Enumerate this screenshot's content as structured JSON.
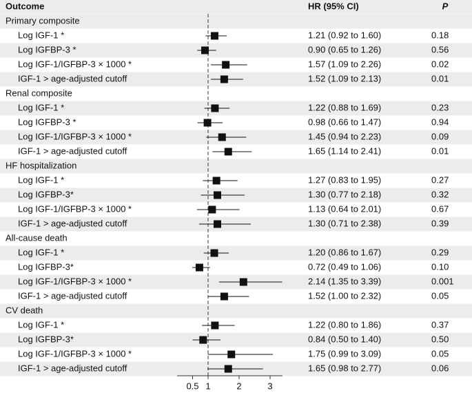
{
  "chart_data": {
    "type": "forest",
    "columns": {
      "outcome": "Outcome",
      "hr": "HR (95% CI)",
      "p": "P"
    },
    "xlim": [
      0,
      3.4
    ],
    "xticks": [
      0.5,
      1,
      2,
      3
    ],
    "reference": 1,
    "color": "#111111",
    "groups": [
      {
        "name": "Primary composite",
        "rows": [
          {
            "label": "Log IGF-1 *",
            "hr": 1.21,
            "lo": 0.92,
            "hi": 1.6,
            "ci_label": "1.21 (0.92 to 1.60)",
            "p": "0.18"
          },
          {
            "label": "Log IGFBP-3 *",
            "hr": 0.9,
            "lo": 0.65,
            "hi": 1.26,
            "ci_label": "0.90 (0.65 to 1.26)",
            "p": "0.56"
          },
          {
            "label": "Log IGF-1/IGFBP-3 × 1000 *",
            "hr": 1.57,
            "lo": 1.09,
            "hi": 2.26,
            "ci_label": "1.57 (1.09 to 2.26)",
            "p": "0.02"
          },
          {
            "label": "IGF-1 > age-adjusted cutoff",
            "hr": 1.52,
            "lo": 1.09,
            "hi": 2.13,
            "ci_label": "1.52 (1.09 to 2.13)",
            "p": "0.01"
          }
        ]
      },
      {
        "name": "Renal composite",
        "rows": [
          {
            "label": "Log IGF-1 *",
            "hr": 1.22,
            "lo": 0.88,
            "hi": 1.69,
            "ci_label": "1.22 (0.88 to 1.69)",
            "p": "0.23"
          },
          {
            "label": "Log IGFBP-3 *",
            "hr": 0.98,
            "lo": 0.66,
            "hi": 1.47,
            "ci_label": "0.98 (0.66 to 1.47)",
            "p": "0.94"
          },
          {
            "label": "Log IGF-1/IGFBP-3 × 1000 *",
            "hr": 1.45,
            "lo": 0.94,
            "hi": 2.23,
            "ci_label": "1.45 (0.94 to 2.23)",
            "p": "0.09"
          },
          {
            "label": "IGF-1 > age-adjusted cutoff",
            "hr": 1.65,
            "lo": 1.14,
            "hi": 2.41,
            "ci_label": "1.65 (1.14 to 2.41)",
            "p": "0.01"
          }
        ]
      },
      {
        "name": "HF hospitalization",
        "rows": [
          {
            "label": "Log IGF-1 *",
            "hr": 1.27,
            "lo": 0.83,
            "hi": 1.95,
            "ci_label": "1.27 (0.83 to 1.95)",
            "p": "0.27"
          },
          {
            "label": "Log IGFBP-3*",
            "hr": 1.3,
            "lo": 0.77,
            "hi": 2.18,
            "ci_label": "1.30 (0.77 to 2.18)",
            "p": "0.32"
          },
          {
            "label": "Log IGF-1/IGFBP-3 × 1000 *",
            "hr": 1.13,
            "lo": 0.64,
            "hi": 2.01,
            "ci_label": "1.13 (0.64 to 2.01)",
            "p": "0.67"
          },
          {
            "label": "IGF-1 > age-adjusted cutoff",
            "hr": 1.3,
            "lo": 0.71,
            "hi": 2.38,
            "ci_label": "1.30 (0.71 to 2.38)",
            "p": "0.39"
          }
        ]
      },
      {
        "name": "All-cause death",
        "rows": [
          {
            "label": "Log IGF-1 *",
            "hr": 1.2,
            "lo": 0.86,
            "hi": 1.67,
            "ci_label": "1.20 (0.86 to 1.67)",
            "p": "0.29"
          },
          {
            "label": "Log IGFBP-3*",
            "hr": 0.72,
            "lo": 0.49,
            "hi": 1.06,
            "ci_label": "0.72 (0.49 to 1.06)",
            "p": "0.10"
          },
          {
            "label": "Log IGF-1/IGFBP-3 × 1000 *",
            "hr": 2.14,
            "lo": 1.35,
            "hi": 3.39,
            "ci_label": "2.14 (1.35 to 3.39)",
            "p": "0.001"
          },
          {
            "label": "IGF-1 > age-adjusted cutoff",
            "hr": 1.52,
            "lo": 1.0,
            "hi": 2.32,
            "ci_label": "1.52 (1.00 to 2.32)",
            "p": "0.05"
          }
        ]
      },
      {
        "name": "CV death",
        "rows": [
          {
            "label": "Log IGF-1 *",
            "hr": 1.22,
            "lo": 0.8,
            "hi": 1.86,
            "ci_label": "1.22 (0.80 to 1.86)",
            "p": "0.37"
          },
          {
            "label": "Log IGFBP-3*",
            "hr": 0.84,
            "lo": 0.5,
            "hi": 1.4,
            "ci_label": "0.84 (0.50 to 1.40)",
            "p": "0.50"
          },
          {
            "label": "Log IGF-1/IGFBP-3 × 1000 *",
            "hr": 1.75,
            "lo": 0.99,
            "hi": 3.09,
            "ci_label": "1.75 (0.99 to 3.09)",
            "p": "0.05"
          },
          {
            "label": "IGF-1 > age-adjusted cutoff",
            "hr": 1.65,
            "lo": 0.98,
            "hi": 2.77,
            "ci_label": "1.65 (0.98 to 2.77)",
            "p": "0.06"
          }
        ]
      }
    ]
  }
}
